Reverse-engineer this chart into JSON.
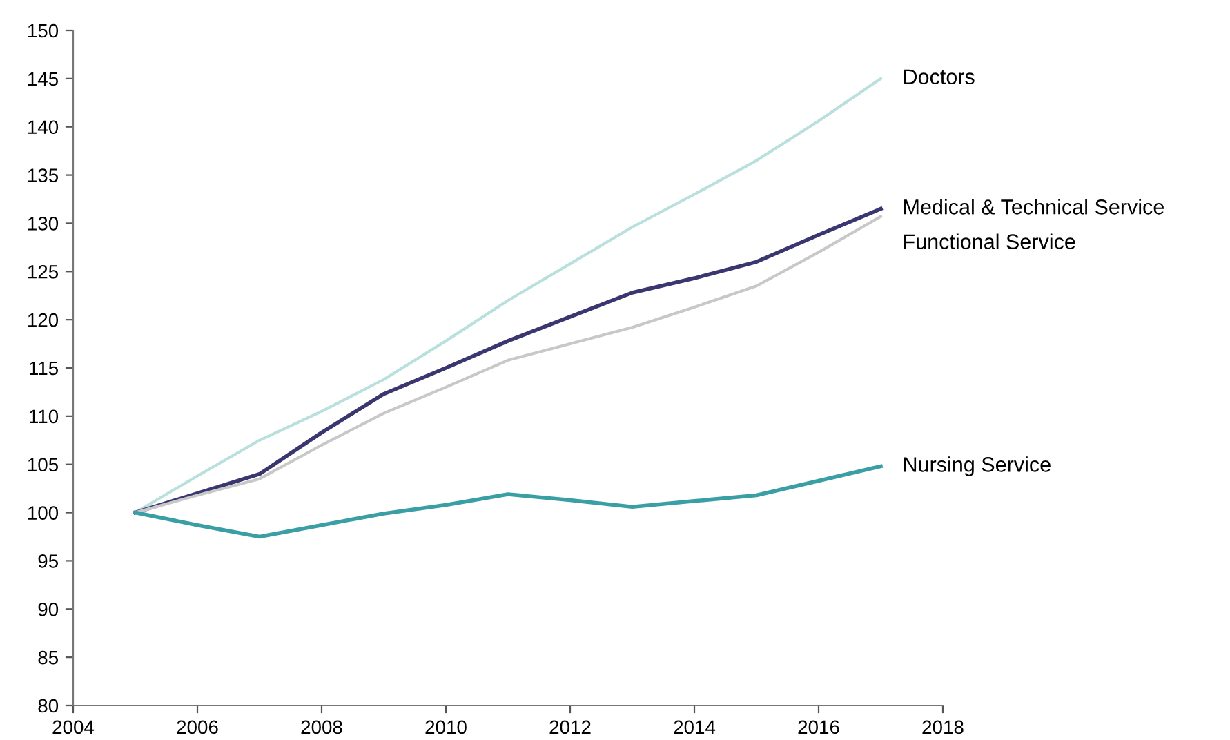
{
  "chart_data": {
    "type": "line",
    "x": [
      2005,
      2006,
      2007,
      2008,
      2009,
      2010,
      2011,
      2012,
      2013,
      2014,
      2015,
      2016,
      2017
    ],
    "series": [
      {
        "name": "Doctors",
        "color": "#b9e0dc",
        "values": [
          100,
          103.8,
          107.5,
          110.5,
          113.8,
          117.8,
          122,
          125.8,
          129.6,
          133,
          136.5,
          140.6,
          145
        ]
      },
      {
        "name": "Medical & Technical Service",
        "color": "#3a3670",
        "values": [
          100,
          102,
          104,
          108.3,
          112.3,
          115,
          117.8,
          120.3,
          122.8,
          124.3,
          126,
          128.8,
          131.5
        ]
      },
      {
        "name": "Functional Service",
        "color": "#c8c8c8",
        "values": [
          100,
          101.8,
          103.5,
          107,
          110.3,
          113,
          115.8,
          117.5,
          119.2,
          121.3,
          123.5,
          127,
          130.7
        ]
      },
      {
        "name": "Nursing Service",
        "color": "#3a9ea5",
        "values": [
          100,
          98.7,
          97.5,
          98.7,
          99.9,
          100.8,
          101.9,
          101.3,
          100.6,
          101.2,
          101.8,
          103.3,
          104.8
        ]
      }
    ],
    "xlim": [
      2004,
      2018
    ],
    "xticks": [
      2004,
      2006,
      2008,
      2010,
      2012,
      2014,
      2016,
      2018
    ],
    "ylim": [
      80,
      150
    ],
    "yticks": [
      80,
      85,
      90,
      95,
      100,
      105,
      110,
      115,
      120,
      125,
      130,
      135,
      140,
      145,
      150
    ],
    "grid": false,
    "legend": false,
    "marker": "none",
    "line_style": "solid"
  }
}
